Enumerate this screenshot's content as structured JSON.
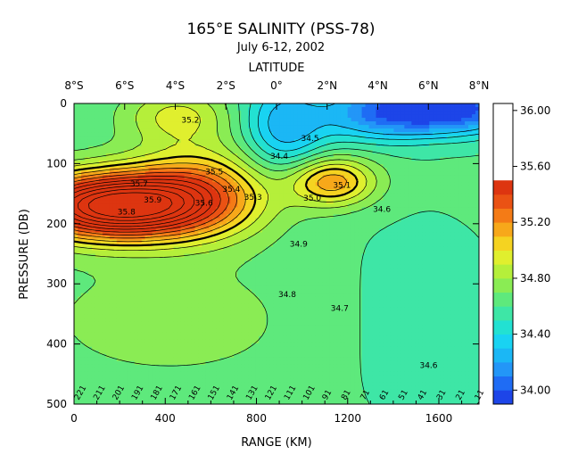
{
  "chart_data": {
    "type": "heatmap",
    "title": "165°E SALINITY (PSS-78)",
    "subtitle": "July 6-12, 2002",
    "top_axis": {
      "label": "LATITUDE",
      "ticks": [
        {
          "label": "8°S",
          "km": 0
        },
        {
          "label": "6°S",
          "km": 222
        },
        {
          "label": "4°S",
          "km": 444
        },
        {
          "label": "2°S",
          "km": 666
        },
        {
          "label": "0°",
          "km": 888
        },
        {
          "label": "2°N",
          "km": 1110
        },
        {
          "label": "4°N",
          "km": 1332
        },
        {
          "label": "6°N",
          "km": 1554
        },
        {
          "label": "8°N",
          "km": 1776
        }
      ]
    },
    "x_axis": {
      "label": "RANGE (KM)",
      "range": [
        0,
        1776
      ],
      "ticks": [
        0,
        400,
        800,
        1200,
        1600
      ]
    },
    "y_axis": {
      "label": "PRESSURE (DB)",
      "range": [
        0,
        500
      ],
      "inverted": true,
      "ticks": [
        0,
        100,
        200,
        300,
        400,
        500
      ]
    },
    "colorbar": {
      "ticks": [
        "36.00",
        "35.60",
        "35.20",
        "34.80",
        "34.40",
        "34.00"
      ],
      "tick_values": [
        36.0,
        35.6,
        35.2,
        34.8,
        34.4,
        34.0
      ],
      "range": [
        33.9,
        36.05
      ],
      "band": 0.1,
      "colors": [
        "#1d45e8",
        "#1f6cf4",
        "#2396f7",
        "#1bb7f5",
        "#19d3f2",
        "#22e1d2",
        "#3ee6a6",
        "#5ee97c",
        "#8aec54",
        "#b5ef3a",
        "#e0ef2e",
        "#f5d321",
        "#f7a81a",
        "#f47b16",
        "#ea5214",
        "#dd3510"
      ]
    },
    "contour_labels": [
      {
        "text": "35.2",
        "km": 510,
        "db": 32
      },
      {
        "text": "35.7",
        "km": 285,
        "db": 138
      },
      {
        "text": "35.9",
        "km": 345,
        "db": 165
      },
      {
        "text": "35.8",
        "km": 230,
        "db": 185
      },
      {
        "text": "35.5",
        "km": 615,
        "db": 118
      },
      {
        "text": "35.6",
        "km": 570,
        "db": 170
      },
      {
        "text": "35.4",
        "km": 690,
        "db": 147
      },
      {
        "text": "35.3",
        "km": 785,
        "db": 160
      },
      {
        "text": "35.1",
        "km": 1175,
        "db": 140
      },
      {
        "text": "35.0",
        "km": 1045,
        "db": 162
      },
      {
        "text": "34.6",
        "km": 1350,
        "db": 180
      },
      {
        "text": "34.9",
        "km": 985,
        "db": 238
      },
      {
        "text": "34.8",
        "km": 935,
        "db": 322
      },
      {
        "text": "34.7",
        "km": 1165,
        "db": 345
      },
      {
        "text": "34.6",
        "km": 1555,
        "db": 440
      },
      {
        "text": "34.5",
        "km": 1035,
        "db": 62
      },
      {
        "text": "34.4",
        "km": 900,
        "db": 92
      }
    ],
    "bottom_labels": [
      "221",
      "211",
      "201",
      "191",
      "181",
      "171",
      "161",
      "151",
      "141",
      "131",
      "121",
      "111",
      "101",
      "91",
      "81",
      "71",
      "61",
      "51",
      "41",
      "31",
      "21",
      "11"
    ]
  }
}
